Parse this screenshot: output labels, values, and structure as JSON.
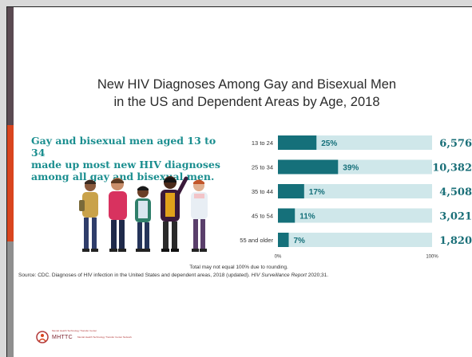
{
  "slide": {
    "title_line1": "New HIV Diagnoses Among Gay and Bisexual Men",
    "title_line2": "in the US and Dependent Areas by Age, 2018",
    "callout_lines": [
      "Gay and bisexual men aged 13 to 34",
      "made up most new HIV diagnoses",
      "among all gay and bisexual men."
    ],
    "footnote": "Total may not equal 100% due to rounding.",
    "source_main": "Source: CDC. Diagnoses of HIV infection in the United States and dependent areas, 2018 (updated). ",
    "source_italic": "HIV Surveillance Report",
    "source_tail": " 2020;31.",
    "logo_text": "MHTTC",
    "logo_subtext": "Mental Health Technology Transfer Center",
    "logo_tagline": "Mental Health Technology Transfer Center Network",
    "colors": {
      "accent_teal": "#1a8e8f",
      "bar_dark": "#15707a",
      "bar_light": "#cfe7ea",
      "brand_red": "#d9451e"
    }
  },
  "chart_data": {
    "type": "bar",
    "orientation": "horizontal",
    "categories": [
      "13 to 24",
      "25 to 34",
      "35 to 44",
      "45 to 54",
      "55 and older"
    ],
    "values": [
      25,
      39,
      17,
      11,
      7
    ],
    "value_labels": [
      "25%",
      "39%",
      "17%",
      "11%",
      "7%"
    ],
    "counts": [
      "6,576",
      "10,382",
      "4,508",
      "3,021",
      "1,820"
    ],
    "xlim": [
      0,
      100
    ],
    "x_tick_labels": [
      "0%",
      "100%"
    ],
    "grid": false
  }
}
